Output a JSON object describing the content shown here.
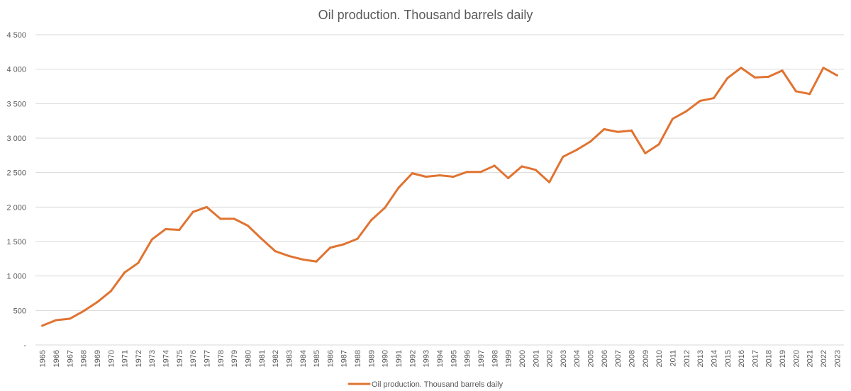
{
  "chart_data": {
    "type": "line",
    "title": "Oil production. Thousand barrels daily",
    "xlabel": "",
    "ylabel": "",
    "ylim": [
      0,
      4500
    ],
    "yticks": [
      0,
      500,
      1000,
      1500,
      2000,
      2500,
      3000,
      3500,
      4000,
      4500
    ],
    "ytick_labels": [
      "-",
      "500",
      "1 000",
      "1 500",
      "2 000",
      "2 500",
      "3 000",
      "3 500",
      "4 000",
      "4 500"
    ],
    "grid": true,
    "legend_position": "bottom",
    "line_color": "#E07331",
    "categories": [
      "1965",
      "1966",
      "1967",
      "1968",
      "1969",
      "1970",
      "1971",
      "1972",
      "1973",
      "1974",
      "1975",
      "1976",
      "1977",
      "1978",
      "1979",
      "1980",
      "1981",
      "1982",
      "1983",
      "1984",
      "1985",
      "1986",
      "1987",
      "1988",
      "1989",
      "1990",
      "1991",
      "1992",
      "1993",
      "1994",
      "1995",
      "1996",
      "1997",
      "1998",
      "1999",
      "2000",
      "2001",
      "2002",
      "2003",
      "2004",
      "2005",
      "2006",
      "2007",
      "2008",
      "2009",
      "2010",
      "2011",
      "2012",
      "2013",
      "2014",
      "2015",
      "2016",
      "2017",
      "2018",
      "2019",
      "2020",
      "2021",
      "2022",
      "2023"
    ],
    "series": [
      {
        "name": "Oil production. Thousand barrels daily",
        "values": [
          280,
          360,
          380,
          490,
          620,
          780,
          1050,
          1190,
          1530,
          1680,
          1670,
          1930,
          2000,
          1830,
          1830,
          1730,
          1540,
          1360,
          1290,
          1240,
          1210,
          1410,
          1460,
          1540,
          1810,
          1990,
          2280,
          2490,
          2440,
          2460,
          2440,
          2510,
          2510,
          2600,
          2420,
          2590,
          2540,
          2360,
          2730,
          2830,
          2950,
          3130,
          3090,
          3110,
          2780,
          2910,
          3280,
          3390,
          3540,
          3580,
          3870,
          4020,
          3880,
          3890,
          3980,
          3680,
          3640,
          4020,
          3910
        ]
      }
    ]
  }
}
